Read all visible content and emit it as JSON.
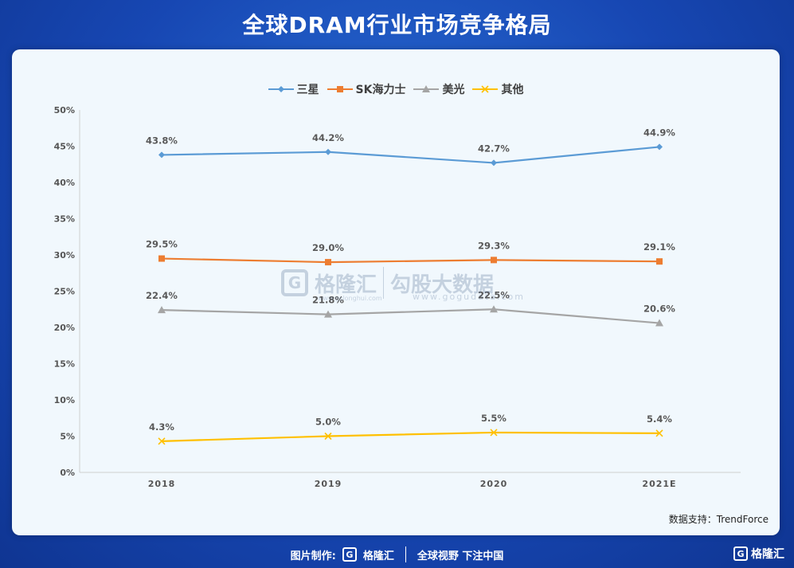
{
  "title": "全球DRAM行业市场竞争格局",
  "source": "数据支持：TrendForce",
  "watermark": {
    "name": "格隆汇",
    "url": "www.gelonghui.com",
    "name2": "勾股大数据",
    "url2": "www.gogudata.com"
  },
  "footer": {
    "label": "图片制作:",
    "brand": "格隆汇",
    "slogan": "全球视野 下注中国"
  },
  "corner_logo": "格隆汇",
  "colors": {
    "三星": "#5b9bd5",
    "SK海力士": "#ed7d31",
    "美光": "#a5a5a5",
    "其他": "#ffc000"
  },
  "chart_data": {
    "type": "line",
    "categories": [
      "2018",
      "2019",
      "2020",
      "2021E"
    ],
    "ylim": [
      0,
      50
    ],
    "yticks": [
      "0%",
      "5%",
      "10%",
      "15%",
      "20%",
      "25%",
      "30%",
      "35%",
      "40%",
      "45%",
      "50%"
    ],
    "legend_position": "top-center",
    "grid": false,
    "series": [
      {
        "name": "三星",
        "values": [
          43.8,
          44.2,
          42.7,
          44.9
        ],
        "labels": [
          "43.8%",
          "44.2%",
          "42.7%",
          "44.9%"
        ],
        "color": "#5b9bd5",
        "marker": "diamond"
      },
      {
        "name": "SK海力士",
        "values": [
          29.5,
          29.0,
          29.3,
          29.1
        ],
        "labels": [
          "29.5%",
          "29.0%",
          "29.3%",
          "29.1%"
        ],
        "color": "#ed7d31",
        "marker": "square"
      },
      {
        "name": "美光",
        "values": [
          22.4,
          21.8,
          22.5,
          20.6
        ],
        "labels": [
          "22.4%",
          "21.8%",
          "22.5%",
          "20.6%"
        ],
        "color": "#a5a5a5",
        "marker": "triangle"
      },
      {
        "name": "其他",
        "values": [
          4.3,
          5.0,
          5.5,
          5.4
        ],
        "labels": [
          "4.3%",
          "5.0%",
          "5.5%",
          "5.4%"
        ],
        "color": "#ffc000",
        "marker": "x"
      }
    ]
  }
}
